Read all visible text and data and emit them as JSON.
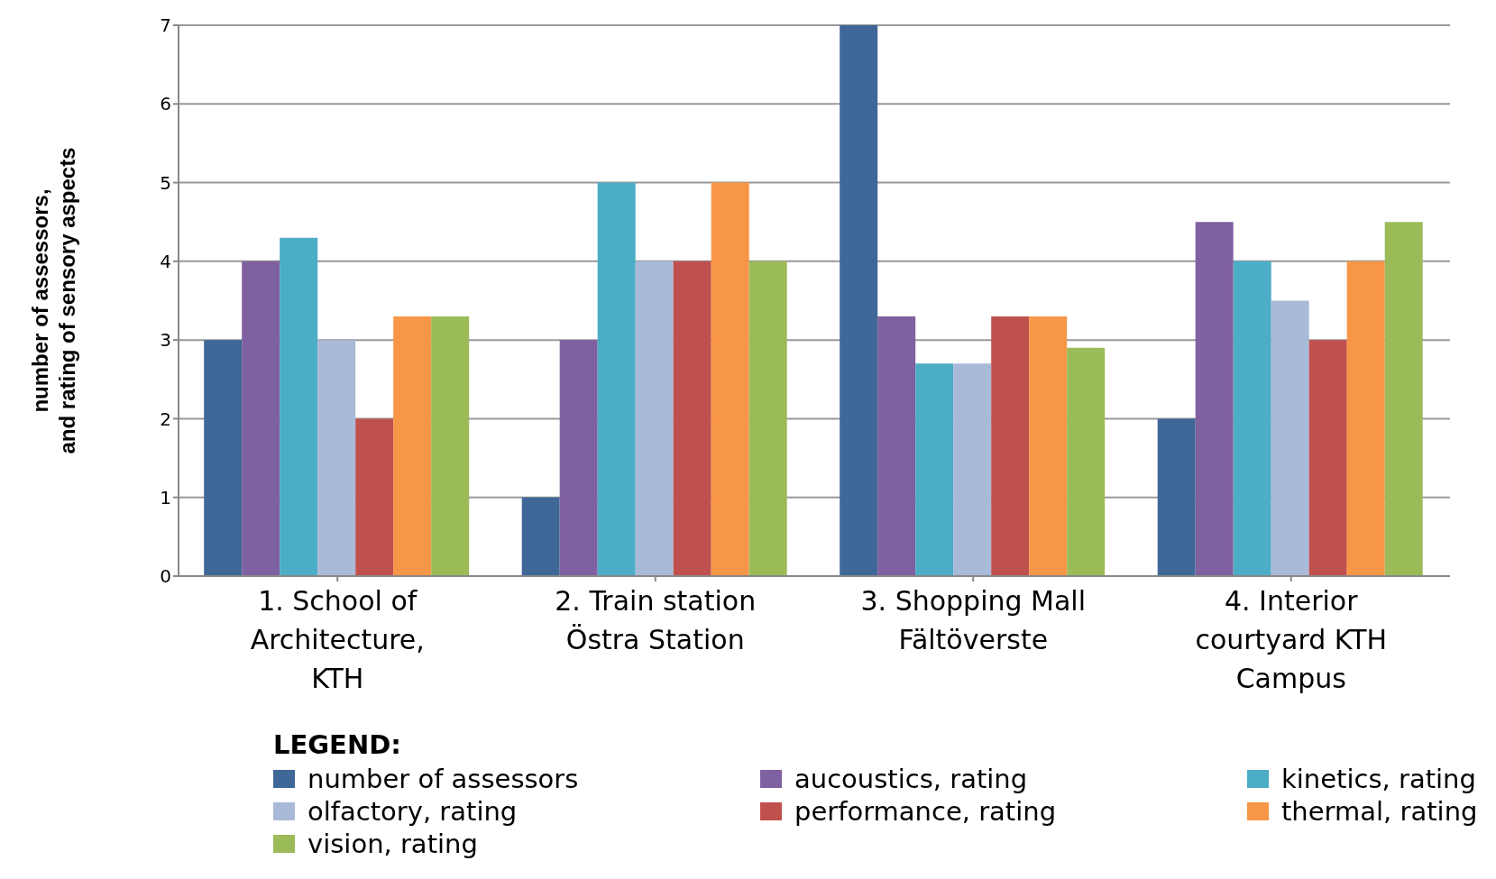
{
  "chart_data": {
    "type": "bar",
    "ylabel": "number of assessors, and rating of sensory aspects",
    "legend_title": "LEGEND:",
    "categories": [
      "1. School of Architecture, KTH",
      "2. Train station Östra Station",
      "3. Shopping Mall Fältöverste",
      "4. Interior courtyard KTH Campus"
    ],
    "series": [
      {
        "name": "number of assessors",
        "color": "#3f6797",
        "values": [
          3,
          1,
          7,
          2
        ]
      },
      {
        "name": "aucoustics, rating",
        "color": "#7f60a0",
        "values": [
          4,
          3,
          3.3,
          4.5
        ]
      },
      {
        "name": "kinetics, rating",
        "color": "#4badc6",
        "values": [
          4.3,
          5,
          2.7,
          4
        ]
      },
      {
        "name": "olfactory, rating",
        "color": "#a9b9d8",
        "values": [
          3,
          4,
          2.7,
          3.5
        ]
      },
      {
        "name": "performance, rating",
        "color": "#c0504d",
        "values": [
          2,
          4,
          3.3,
          3
        ]
      },
      {
        "name": "thermal, rating",
        "color": "#f79646",
        "values": [
          3.3,
          5,
          3.3,
          4
        ]
      },
      {
        "name": "vision, rating",
        "color": "#9bbb59",
        "values": [
          3.3,
          4,
          2.9,
          4.5
        ]
      }
    ],
    "ylim": [
      0,
      7
    ],
    "yticks": [
      0,
      1,
      2,
      3,
      4,
      5,
      6,
      7
    ],
    "grid": "y",
    "legend": "bottom"
  }
}
